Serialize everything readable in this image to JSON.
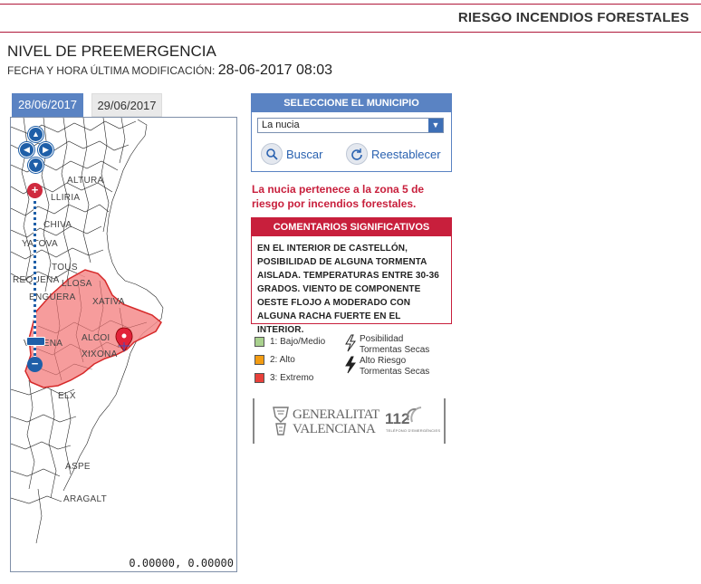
{
  "header": {
    "title": "RIESGO INCENDIOS FORESTALES"
  },
  "level_title": "NIVEL DE PREEMERGENCIA",
  "modified": {
    "label": "FECHA Y HORA ÚLTIMA MODIFICACIÓN",
    "sep": ":",
    "value": "28-06-2017 08:03"
  },
  "tabs": [
    {
      "label": "28/06/2017",
      "active": true
    },
    {
      "label": "29/06/2017",
      "active": false
    }
  ],
  "map": {
    "coordinates": "0.00000, 0.00000",
    "labels": [
      "ALTURA",
      "LLIRIA",
      "CHIVA",
      "YATOVA",
      "TOUS",
      "REQUENA",
      "LLOSA",
      "ENGUERA",
      "XATIVA",
      "VILLENA",
      "ALCOI",
      "XIXONA",
      "ELX",
      "ASPE",
      "ARAGALT"
    ],
    "zoom_plus": "+",
    "zoom_minus": "−",
    "nav": {
      "up": "▲",
      "down": "▼",
      "left": "◀",
      "right": "▶"
    }
  },
  "municipality": {
    "header": "SELECCIONE EL MUNICIPIO",
    "selected": "La nucia",
    "dropdown_icon": "chevron-down-icon",
    "search_label": "Buscar",
    "reset_label": "Reestablecer"
  },
  "zone_text": "La nucia pertenece a la zona 5 de riesgo por incendios forestales.",
  "comments": {
    "header": "COMENTARIOS SIGNIFICATIVOS",
    "body": "EN EL INTERIOR DE CASTELLÓN, POSIBILIDAD DE ALGUNA TORMENTA AISLADA. TEMPERATURAS ENTRE 30-36 GRADOS. VIENTO DE COMPONENTE OESTE FLOJO A MODERADO CON ALGUNA RACHA FUERTE EN EL INTERIOR."
  },
  "legend": {
    "levels": [
      {
        "label": "1: Bajo/Medio",
        "color": "#a9d18e"
      },
      {
        "label": "2: Alto",
        "color": "#f39c12"
      },
      {
        "label": "3: Extremo",
        "color": "#e8403a"
      }
    ],
    "storms": [
      {
        "line1": "Posibilidad",
        "line2": "Tormentas Secas",
        "icon": "lightning-outline-icon"
      },
      {
        "line1": "Alto Riesgo",
        "line2": "Tormentas Secas",
        "icon": "lightning-filled-icon"
      }
    ]
  },
  "logos": {
    "gv_line1": "GENERALITAT",
    "gv_line2": "VALENCIANA",
    "emergency": "112",
    "emergency_sub": "TELÉFONO D'EMERGÈNCIES"
  },
  "colors": {
    "brand_red": "#c81f3c",
    "brand_blue": "#5a83c3",
    "extreme_fill": "#f48b8b"
  }
}
